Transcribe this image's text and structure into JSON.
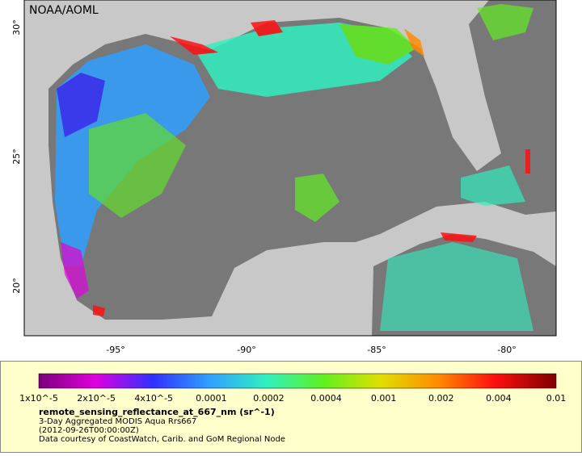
{
  "map": {
    "credit": "NOAA/AOML",
    "lat_labels": [
      "30°",
      "25°",
      "20°"
    ],
    "lon_labels": [
      "-95°",
      "-90°",
      "-85°",
      "-80°"
    ]
  },
  "legend": {
    "labels": [
      "1x10^-5",
      "2x10^-5",
      "4x10^-5",
      "0.0001",
      "0.0002",
      "0.0004",
      "0.001",
      "0.002",
      "0.004",
      "0.01"
    ],
    "variable": "remote_sensing_reflectance_at_667_nm (sr^-1)",
    "dataset": "3-Day Aggregated MODIS Aqua Rrs667",
    "time": "(2012-09-26T00:00:00Z)",
    "courtesy": "Data courtesy of CoastWatch, Carib. and GoM Regional Node"
  }
}
